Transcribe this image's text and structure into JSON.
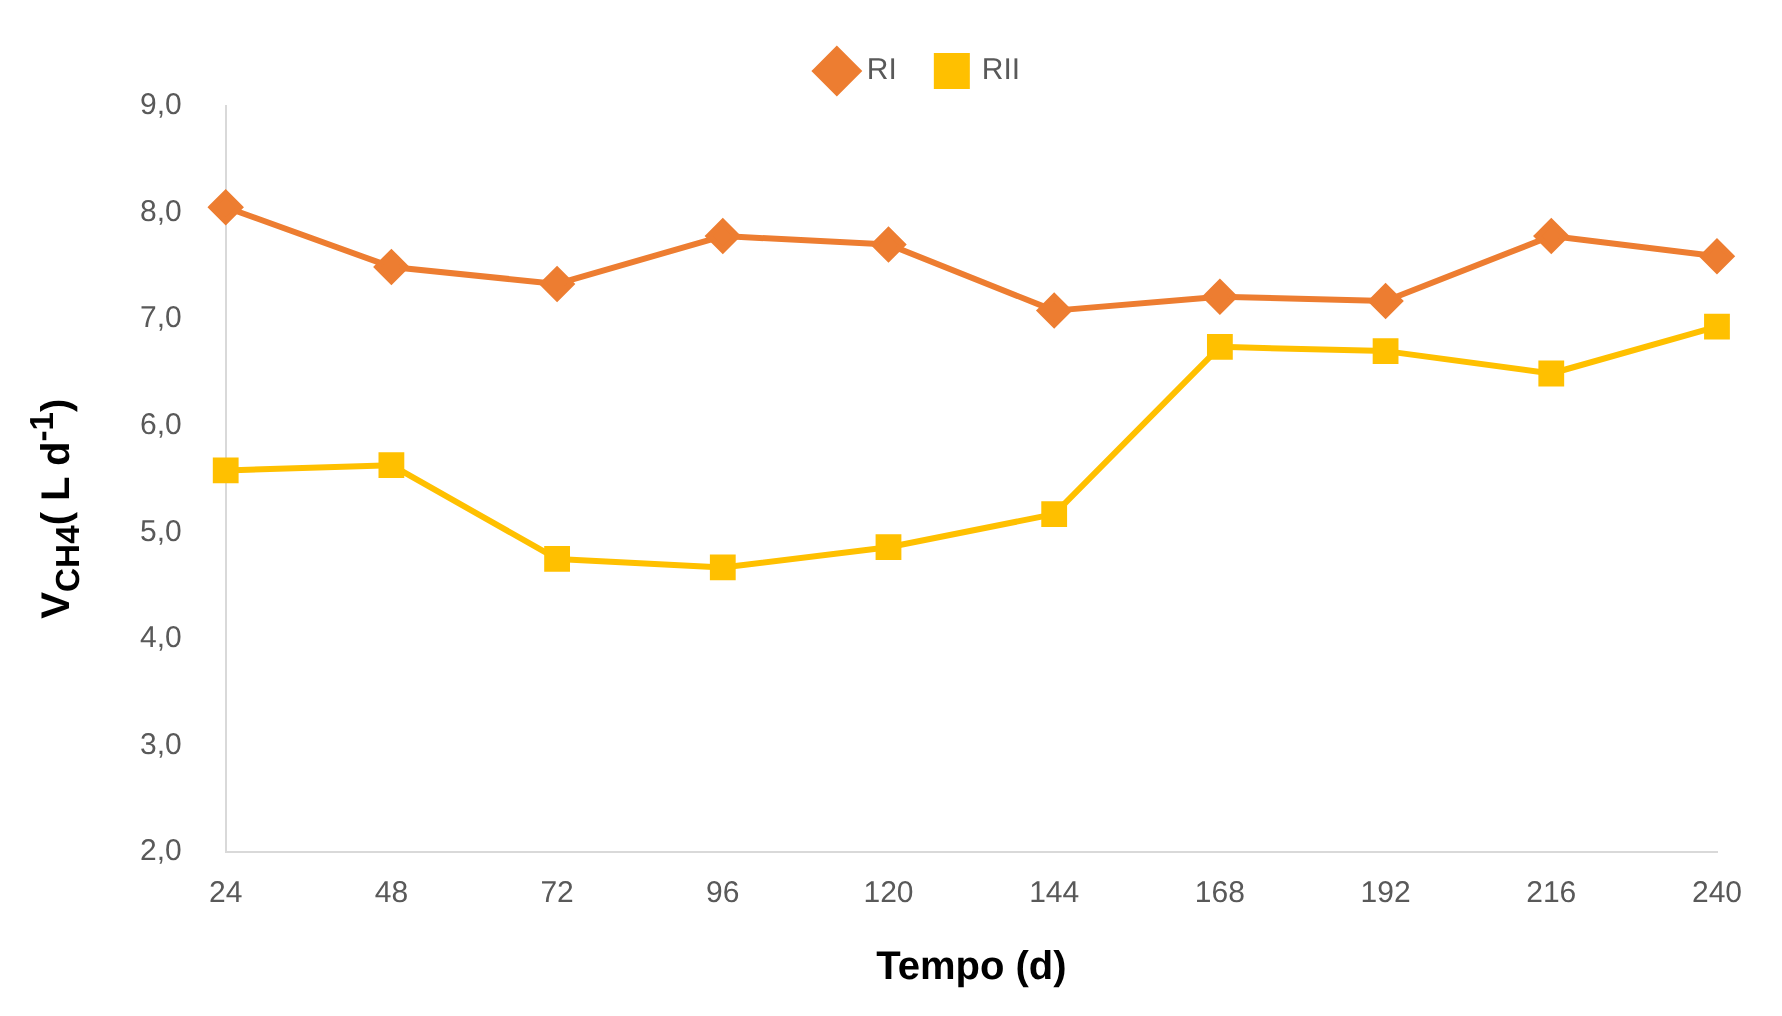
{
  "chart_data": {
    "type": "line",
    "xlabel": "Tempo (d)",
    "ylabel": "V$_{CH4}$( L d$^{-1}$)",
    "categories": [
      "24",
      "48",
      "72",
      "96",
      "120",
      "144",
      "168",
      "192",
      "216",
      "240"
    ],
    "series": [
      {
        "name": "RI",
        "color": "#ed7d31",
        "marker": "diamond",
        "values": [
          8.05,
          7.49,
          7.33,
          7.78,
          7.7,
          7.08,
          7.21,
          7.17,
          7.78,
          7.59
        ]
      },
      {
        "name": "RII",
        "color": "#ffc000",
        "marker": "square",
        "values": [
          5.58,
          5.63,
          4.75,
          4.67,
          4.86,
          5.17,
          6.74,
          6.7,
          6.49,
          6.93
        ]
      }
    ],
    "ylim": [
      2,
      9
    ],
    "yticks": [
      {
        "value": 2,
        "label": "2,0"
      },
      {
        "value": 3,
        "label": "3,0"
      },
      {
        "value": 4,
        "label": "4,0"
      },
      {
        "value": 5,
        "label": "5,0"
      },
      {
        "value": 6,
        "label": "6,0"
      },
      {
        "value": 7,
        "label": "7,0"
      },
      {
        "value": 8,
        "label": "8,0"
      },
      {
        "value": 9,
        "label": "9,0"
      }
    ],
    "grid": false,
    "legend": "top",
    "line_style": "solid"
  }
}
